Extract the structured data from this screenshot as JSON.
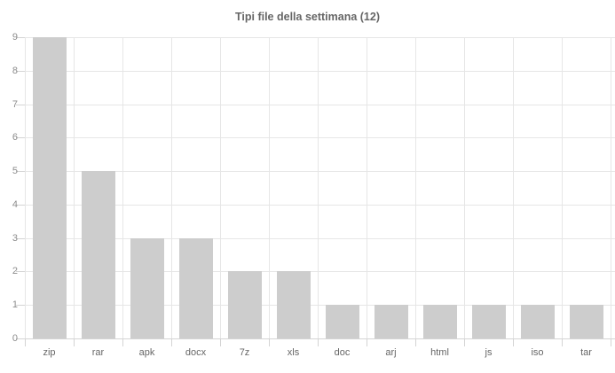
{
  "chart_data": {
    "type": "bar",
    "title": "Tipi file della settimana (12)",
    "categories": [
      "zip",
      "rar",
      "apk",
      "docx",
      "7z",
      "xls",
      "doc",
      "arj",
      "html",
      "js",
      "iso",
      "tar"
    ],
    "values": [
      9,
      5,
      3,
      3,
      2,
      2,
      1,
      1,
      1,
      1,
      1,
      1
    ],
    "xlabel": "",
    "ylabel": "",
    "ylim": [
      0,
      9
    ],
    "ytick_step": 1,
    "grid": true,
    "legend": false,
    "colors": {
      "bar_fill": "#cdcdcd",
      "gridline": "#e6e6e6",
      "axis_line": "#d4d4d4",
      "tick_mark": "#d4d4d4",
      "title_text": "#666666",
      "y_label_text": "#8c8c8c",
      "x_label_text": "#666666",
      "background": "#ffffff"
    }
  }
}
